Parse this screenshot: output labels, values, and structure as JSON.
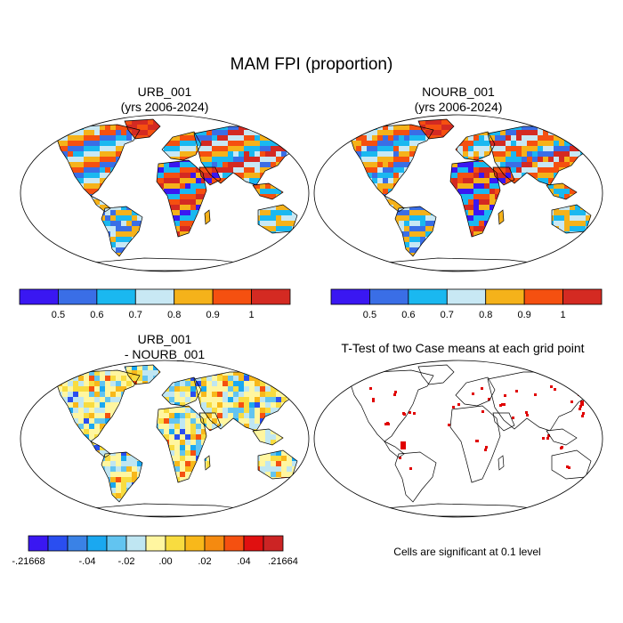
{
  "title": "MAM FPI (proportion)",
  "panels": [
    {
      "id": "urb",
      "title_line1": "URB_001",
      "title_line2": "(yrs 2006-2024)"
    },
    {
      "id": "nourb",
      "title_line1": "NOURB_001",
      "title_line2": "(yrs 2006-2024)"
    },
    {
      "id": "diff",
      "title_line1": "URB_001",
      "title_line2": "- NOURB_001"
    },
    {
      "id": "ttest",
      "title_line1": "T-Test of two Case means at each grid point",
      "title_line2": ""
    }
  ],
  "colorbar_main": {
    "colors": [
      "#3a17f2",
      "#3a6ee6",
      "#1ab8f0",
      "#c8e8f4",
      "#f5b21a",
      "#f55010",
      "#d42a22"
    ],
    "labels": [
      "0.5",
      "0.6",
      "0.7",
      "0.8",
      "0.9",
      "1"
    ]
  },
  "colorbar_diff": {
    "colors": [
      "#3a17f2",
      "#2a4ef0",
      "#3a82e6",
      "#1aa8f0",
      "#62c4f0",
      "#bfe6f2",
      "#fff6a0",
      "#f8dc40",
      "#f8b81a",
      "#f58a10",
      "#f55010",
      "#e01010",
      "#cc2424"
    ],
    "labels": [
      "-.21668",
      "-.04",
      "-.02",
      ".00",
      ".02",
      ".04",
      ".21664"
    ]
  },
  "ttest_note": "Cells are significant at 0.1 level",
  "colors": {
    "land_outline": "#000000",
    "significant_cell": "#e00000"
  }
}
